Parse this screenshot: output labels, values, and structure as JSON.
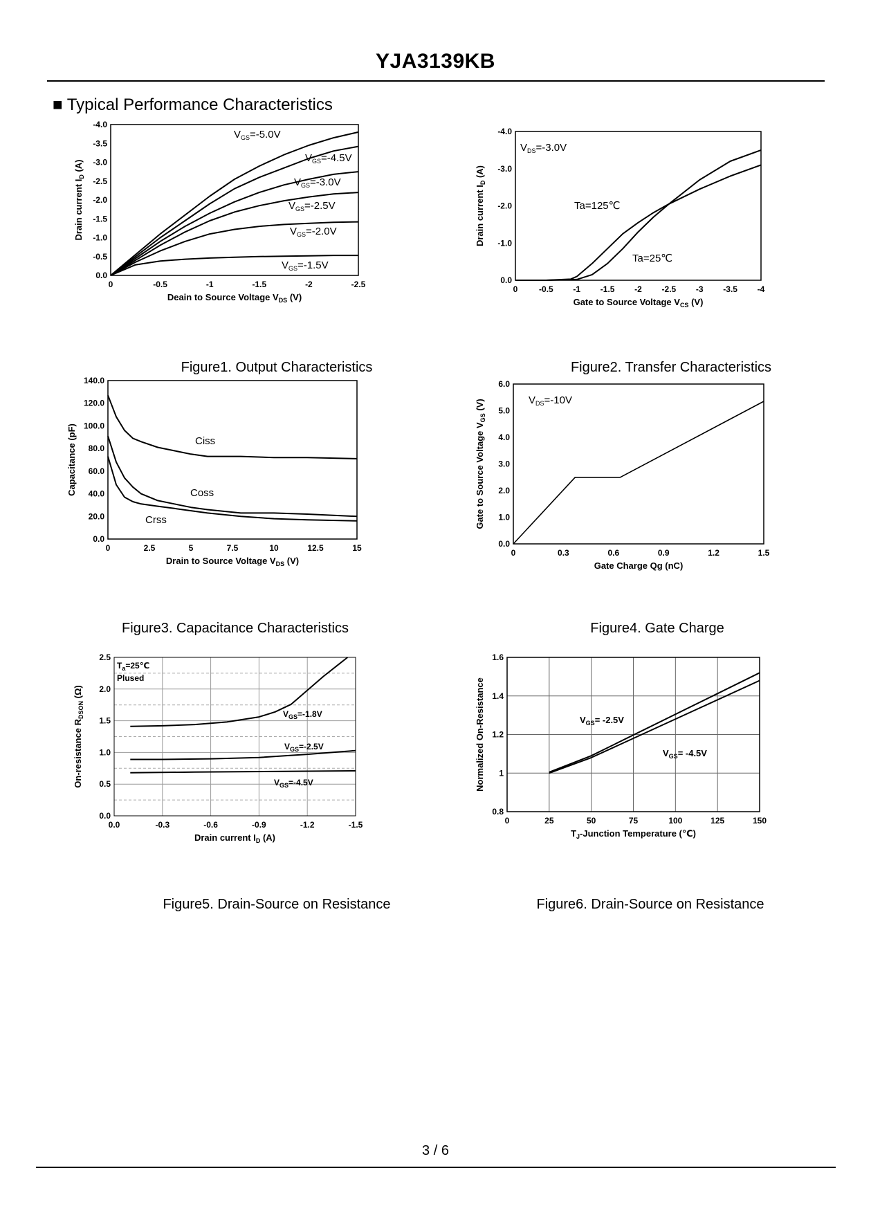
{
  "page": {
    "title": "YJA3139KB",
    "section_title": "■ Typical Performance Characteristics",
    "page_number": "3 / 6"
  },
  "captions": {
    "fig1": "Figure1.  Output Characteristics",
    "fig2": "Figure2.  Transfer Characteristics",
    "fig3": "Figure3.  Capacitance Characteristics",
    "fig4": "Figure4. Gate Charge",
    "fig5": "Figure5. Drain-Source on Resistance",
    "fig6": "Figure6. Drain-Source on Resistance"
  },
  "chart_data": [
    {
      "id": "fig1",
      "type": "line",
      "title": "Output Characteristics",
      "xlabel": "Deain to Source Voltage V",
      "xlabel_sub": "DS",
      "xlabel_tail": " (V)",
      "ylabel": "Drain current I",
      "ylabel_sub": "D",
      "ylabel_tail": " (A)",
      "xlim": [
        0,
        -2.5
      ],
      "ylim": [
        0,
        -4.0
      ],
      "xticks": [
        0,
        -0.5,
        -1,
        -1.5,
        -2,
        -2.5
      ],
      "xtick_labels": [
        "0",
        "-0.5",
        "-1",
        "-1.5",
        "-2",
        "-2.5"
      ],
      "yticks": [
        0,
        -0.5,
        -1,
        -1.5,
        -2,
        -2.5,
        -3,
        -3.5,
        -4
      ],
      "ytick_labels": [
        "0.0",
        "-0.5",
        "-1.0",
        "-1.5",
        "-2.0",
        "-2.5",
        "-3.0",
        "-3.5",
        "-4.0"
      ],
      "series": [
        {
          "name": "V_GS=-5.0V",
          "label_main": "V",
          "label_sub": "GS",
          "label_tail": "=-5.0V",
          "x": [
            0,
            -0.25,
            -0.5,
            -0.75,
            -1.0,
            -1.25,
            -1.5,
            -1.75,
            -2.0,
            -2.25,
            -2.5
          ],
          "y": [
            0,
            -0.55,
            -1.1,
            -1.6,
            -2.1,
            -2.55,
            -2.9,
            -3.2,
            -3.45,
            -3.65,
            -3.8
          ]
        },
        {
          "name": "V_GS=-4.5V",
          "label_main": "V",
          "label_sub": "GS",
          "label_tail": "=-4.5V",
          "x": [
            0,
            -0.25,
            -0.5,
            -0.75,
            -1.0,
            -1.25,
            -1.5,
            -1.75,
            -2.0,
            -2.25,
            -2.5
          ],
          "y": [
            0,
            -0.5,
            -1.0,
            -1.45,
            -1.9,
            -2.3,
            -2.6,
            -2.85,
            -3.1,
            -3.3,
            -3.42
          ]
        },
        {
          "name": "V_GS=-3.0V",
          "label_main": "V",
          "label_sub": "GS",
          "label_tail": "=-3.0V",
          "x": [
            0,
            -0.25,
            -0.5,
            -0.75,
            -1.0,
            -1.25,
            -1.5,
            -1.75,
            -2.0,
            -2.25,
            -2.5
          ],
          "y": [
            0,
            -0.45,
            -0.9,
            -1.3,
            -1.65,
            -1.95,
            -2.2,
            -2.4,
            -2.55,
            -2.68,
            -2.75
          ]
        },
        {
          "name": "V_GS=-2.5V",
          "label_main": "V",
          "label_sub": "GS",
          "label_tail": "=-2.5V",
          "x": [
            0,
            -0.25,
            -0.5,
            -0.75,
            -1.0,
            -1.25,
            -1.5,
            -1.75,
            -2.0,
            -2.25,
            -2.5
          ],
          "y": [
            0,
            -0.4,
            -0.8,
            -1.15,
            -1.45,
            -1.68,
            -1.85,
            -1.98,
            -2.08,
            -2.16,
            -2.2
          ]
        },
        {
          "name": "V_GS=-2.0V",
          "label_main": "V",
          "label_sub": "GS",
          "label_tail": "=-2.0V",
          "x": [
            0,
            -0.25,
            -0.5,
            -0.75,
            -1.0,
            -1.25,
            -1.5,
            -1.75,
            -2.0,
            -2.25,
            -2.5
          ],
          "y": [
            0,
            -0.35,
            -0.65,
            -0.9,
            -1.1,
            -1.22,
            -1.3,
            -1.35,
            -1.38,
            -1.41,
            -1.42
          ]
        },
        {
          "name": "V_GS=-1.5V",
          "label_main": "V",
          "label_sub": "GS",
          "label_tail": "=-1.5V",
          "x": [
            0,
            -0.25,
            -0.5,
            -0.75,
            -1.0,
            -1.25,
            -1.5,
            -1.75,
            -2.0,
            -2.25,
            -2.5
          ],
          "y": [
            0,
            -0.28,
            -0.38,
            -0.43,
            -0.46,
            -0.48,
            -0.5,
            -0.51,
            -0.52,
            -0.53,
            -0.53
          ]
        }
      ]
    },
    {
      "id": "fig2",
      "type": "line",
      "title": "Transfer Characteristics",
      "annotation": {
        "main": "V",
        "sub": "DS",
        "tail": "=-3.0V"
      },
      "xlabel": "Gate to Source Voltage V",
      "xlabel_sub": "CS",
      "xlabel_tail": " (V)",
      "ylabel": "Drain current I",
      "ylabel_sub": "D",
      "ylabel_tail": " (A)",
      "xlim": [
        0,
        -4
      ],
      "ylim": [
        0,
        -4.0
      ],
      "xticks": [
        0,
        -0.5,
        -1,
        -1.5,
        -2,
        -2.5,
        -3,
        -3.5,
        -4
      ],
      "xtick_labels": [
        "0",
        "-0.5",
        "-1",
        "-1.5",
        "-2",
        "-2.5",
        "-3",
        "-3.5",
        "-4"
      ],
      "yticks": [
        0,
        -1,
        -2,
        -3,
        -4
      ],
      "ytick_labels": [
        "0.0",
        "-1.0",
        "-2.0",
        "-3.0",
        "-4.0"
      ],
      "series": [
        {
          "name": "Ta=125℃",
          "x": [
            0,
            -0.5,
            -0.9,
            -1.0,
            -1.25,
            -1.5,
            -1.75,
            -2.0,
            -2.25,
            -2.5,
            -3.0,
            -3.5,
            -4.0
          ],
          "y": [
            0,
            0,
            -0.03,
            -0.1,
            -0.45,
            -0.85,
            -1.25,
            -1.55,
            -1.82,
            -2.05,
            -2.45,
            -2.8,
            -3.1
          ]
        },
        {
          "name": "Ta=25℃",
          "x": [
            0,
            -0.5,
            -1.0,
            -1.25,
            -1.5,
            -1.75,
            -2.0,
            -2.25,
            -2.5,
            -3.0,
            -3.5,
            -4.0
          ],
          "y": [
            0,
            0,
            -0.02,
            -0.15,
            -0.45,
            -0.85,
            -1.3,
            -1.7,
            -2.05,
            -2.7,
            -3.2,
            -3.5
          ]
        }
      ],
      "labels": {
        "ta125": "Ta=125℃",
        "ta25": "Ta=25℃"
      }
    },
    {
      "id": "fig3",
      "type": "line",
      "title": "Capacitance Characteristics",
      "xlabel": "Drain to Source Voltage V",
      "xlabel_sub": "DS",
      "xlabel_tail": " (V)",
      "ylabel": "Capacitance (pF)",
      "xlim": [
        0,
        15
      ],
      "ylim": [
        0,
        140
      ],
      "xticks": [
        0,
        2.5,
        5,
        7.5,
        10,
        12.5,
        15
      ],
      "xtick_labels": [
        "0",
        "2.5",
        "5",
        "7.5",
        "10",
        "12.5",
        "15"
      ],
      "yticks": [
        0,
        20,
        40,
        60,
        80,
        100,
        120,
        140
      ],
      "ytick_labels": [
        "0.0",
        "20.0",
        "40.0",
        "60.0",
        "80.0",
        "100.0",
        "120.0",
        "140.0"
      ],
      "series": [
        {
          "name": "Ciss",
          "x": [
            0,
            0.5,
            1,
            1.5,
            2,
            3,
            4,
            5,
            6,
            8,
            10,
            12,
            15
          ],
          "y": [
            127,
            108,
            96,
            89,
            86,
            81,
            78,
            75,
            73,
            73,
            72,
            72,
            71
          ]
        },
        {
          "name": "Coss",
          "x": [
            0,
            0.5,
            1,
            1.5,
            2,
            3,
            4,
            5,
            6,
            8,
            10,
            12,
            15
          ],
          "y": [
            91,
            68,
            54,
            46,
            40,
            34,
            31,
            28,
            26,
            23,
            23,
            22,
            20
          ]
        },
        {
          "name": "Crss",
          "x": [
            0,
            0.5,
            1,
            1.5,
            2,
            3,
            4,
            5,
            6,
            8,
            10,
            12,
            15
          ],
          "y": [
            73,
            48,
            37,
            33,
            31,
            29,
            27,
            25,
            23,
            20,
            18,
            17,
            16
          ]
        }
      ]
    },
    {
      "id": "fig4",
      "type": "line",
      "title": "Gate Charge",
      "annotation": {
        "main": "V",
        "sub": "DS",
        "tail": "=-10V"
      },
      "xlabel": "Gate Charge Qg (nC)",
      "ylabel": "Gate to Source  Voltage V",
      "ylabel_sub": "GS",
      "ylabel_tail": " (V)",
      "xlim": [
        0,
        1.5
      ],
      "ylim": [
        0,
        6
      ],
      "xticks": [
        0,
        0.3,
        0.6,
        0.9,
        1.2,
        1.5
      ],
      "xtick_labels": [
        "0",
        "0.3",
        "0.6",
        "0.9",
        "1.2",
        "1.5"
      ],
      "yticks": [
        0,
        1,
        2,
        3,
        4,
        5,
        6
      ],
      "ytick_labels": [
        "0.0",
        "1.0",
        "2.0",
        "3.0",
        "4.0",
        "5.0",
        "6.0"
      ],
      "series": [
        {
          "name": "VGS",
          "x": [
            0,
            0.37,
            0.64,
            1.5
          ],
          "y": [
            0,
            2.5,
            2.5,
            5.35
          ]
        }
      ]
    },
    {
      "id": "fig5",
      "type": "line",
      "title": "Drain-Source on Resistance",
      "annotation1": {
        "main": "T",
        "sub": "a",
        "tail": "=25℃"
      },
      "annotation2": "Plused",
      "xlabel": "Drain current I",
      "xlabel_sub": "D",
      "xlabel_tail": " (A)",
      "ylabel": "On-resistance R",
      "ylabel_sub": "DSON",
      "ylabel_tail": " (Ω)",
      "xlim": [
        0,
        -1.5
      ],
      "ylim": [
        0,
        2.5
      ],
      "xticks": [
        0,
        -0.3,
        -0.6,
        -0.9,
        -1.2,
        -1.5
      ],
      "xtick_labels": [
        "0.0",
        "-0.3",
        "-0.6",
        "-0.9",
        "-1.2",
        "-1.5"
      ],
      "yticks": [
        0,
        0.5,
        1.0,
        1.5,
        2.0,
        2.5
      ],
      "ytick_labels": [
        "0.0",
        "0.5",
        "1.0",
        "1.5",
        "2.0",
        "2.5"
      ],
      "series": [
        {
          "name": "V_GS=-1.8V",
          "label_main": "V",
          "label_sub": "GS",
          "label_tail": "=-1.8V",
          "x": [
            -0.1,
            -0.3,
            -0.5,
            -0.7,
            -0.9,
            -1.0,
            -1.1,
            -1.2,
            -1.3,
            -1.4,
            -1.45
          ],
          "y": [
            1.41,
            1.42,
            1.44,
            1.48,
            1.56,
            1.64,
            1.76,
            1.98,
            2.2,
            2.4,
            2.5
          ]
        },
        {
          "name": "V_GS=-2.5V",
          "label_main": "V",
          "label_sub": "GS",
          "label_tail": "=-2.5V",
          "x": [
            -0.1,
            -0.3,
            -0.6,
            -0.9,
            -1.2,
            -1.5
          ],
          "y": [
            0.89,
            0.89,
            0.9,
            0.92,
            0.97,
            1.03
          ]
        },
        {
          "name": "V_GS=-4.5V",
          "label_main": "V",
          "label_sub": "GS",
          "label_tail": "=-4.5V",
          "x": [
            -0.1,
            -0.5,
            -1.0,
            -1.5
          ],
          "y": [
            0.68,
            0.69,
            0.7,
            0.71
          ]
        }
      ]
    },
    {
      "id": "fig6",
      "type": "line",
      "title": "Drain-Source on Resistance",
      "xlabel": "T",
      "xlabel_sub": "J",
      "xlabel_tail": "-Junction Temperature (℃)",
      "ylabel": "Normalized On-Resistance",
      "xlim": [
        0,
        150
      ],
      "ylim": [
        0.8,
        1.6
      ],
      "xticks": [
        0,
        25,
        50,
        75,
        100,
        125,
        150
      ],
      "xtick_labels": [
        "0",
        "25",
        "50",
        "75",
        "100",
        "125",
        "150"
      ],
      "yticks": [
        0.8,
        1.0,
        1.2,
        1.4,
        1.6
      ],
      "ytick_labels": [
        "0.8",
        "1",
        "1.2",
        "1.4",
        "1.6"
      ],
      "series": [
        {
          "name": "V_GS= -2.5V",
          "label_main": "V",
          "label_sub": "GS",
          "label_tail": "= -2.5V",
          "x": [
            25,
            50,
            150
          ],
          "y": [
            1.005,
            1.09,
            1.52
          ]
        },
        {
          "name": "V_GS= -4.5V",
          "label_main": "V",
          "label_sub": "GS",
          "label_tail": "= -4.5V",
          "x": [
            25,
            50,
            150
          ],
          "y": [
            1.0,
            1.08,
            1.48
          ]
        }
      ]
    }
  ]
}
